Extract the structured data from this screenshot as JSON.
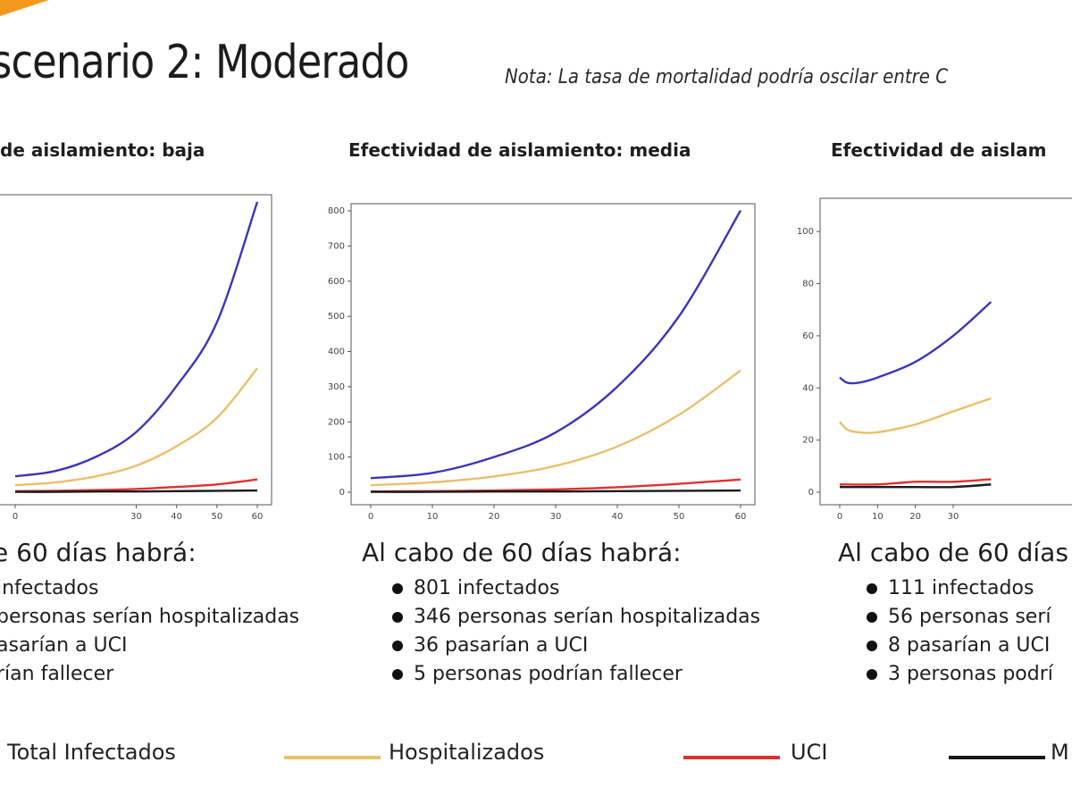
{
  "title": "scenario 2: Moderado",
  "note": "Nota: La tasa de mortalidad podría oscilar entre C",
  "colors": {
    "infectados": "#3a36b8",
    "hospitalizados": "#e8c06a",
    "uci": "#e03030",
    "muertes": "#1a1a1a",
    "accent": "#f39a1e"
  },
  "panels": [
    {
      "title": "de aislamiento: baja",
      "summary_head": "e 60 días habrá:",
      "bullets": [
        "infectados",
        "personas serían hospitalizadas",
        "asarían a UCI",
        "rían fallecer"
      ]
    },
    {
      "title": "Efectividad de aislamiento: media",
      "summary_head": "Al cabo de 60 días habrá:",
      "bullets": [
        "801 infectados",
        "346 personas serían hospitalizadas",
        "36 pasarían a UCI",
        "5 personas podrían fallecer"
      ]
    },
    {
      "title": "Efectividad de aislam",
      "summary_head": "Al cabo de 60 días",
      "bullets": [
        "111 infectados",
        "56 personas serí",
        "8 pasarían a UCI",
        "3 personas podrí"
      ]
    }
  ],
  "legend": [
    {
      "label": "Total Infectados",
      "color": "#3a36b8"
    },
    {
      "label": "Hospitalizados",
      "color": "#e8c06a"
    },
    {
      "label": "UCI",
      "color": "#e03030"
    },
    {
      "label": "M",
      "color": "#1a1a1a"
    }
  ],
  "chart_data": [
    {
      "type": "line",
      "xlim": [
        0,
        60
      ],
      "ylim": [
        0,
        820
      ],
      "x_ticks": [
        "0",
        "30",
        "40",
        "50",
        "60"
      ],
      "y_ticks": [],
      "series": [
        {
          "name": "Total Infectados",
          "x": [
            0,
            10,
            20,
            30,
            40,
            50,
            60
          ],
          "values": [
            45,
            60,
            100,
            170,
            300,
            480,
            820
          ]
        },
        {
          "name": "Hospitalizados",
          "x": [
            0,
            10,
            20,
            30,
            40,
            50,
            60
          ],
          "values": [
            20,
            28,
            45,
            75,
            130,
            210,
            350
          ]
        },
        {
          "name": "UCI",
          "x": [
            0,
            10,
            20,
            30,
            40,
            50,
            60
          ],
          "values": [
            3,
            4,
            6,
            9,
            15,
            22,
            36
          ]
        },
        {
          "name": "M",
          "x": [
            0,
            10,
            20,
            30,
            40,
            50,
            60
          ],
          "values": [
            1,
            1,
            2,
            2,
            3,
            4,
            5
          ]
        }
      ]
    },
    {
      "type": "line",
      "xlim": [
        0,
        60
      ],
      "ylim": [
        0,
        800
      ],
      "x_ticks": [
        "0",
        "10",
        "20",
        "30",
        "40",
        "50",
        "60"
      ],
      "y_ticks": [
        "0",
        "100",
        "200",
        "300",
        "400",
        "500",
        "600",
        "700",
        "800"
      ],
      "series": [
        {
          "name": "Total Infectados",
          "x": [
            0,
            10,
            20,
            30,
            40,
            50,
            60
          ],
          "values": [
            40,
            55,
            100,
            170,
            300,
            500,
            801
          ]
        },
        {
          "name": "Hospitalizados",
          "x": [
            0,
            10,
            20,
            30,
            40,
            50,
            60
          ],
          "values": [
            20,
            28,
            45,
            75,
            130,
            220,
            346
          ]
        },
        {
          "name": "UCI",
          "x": [
            0,
            10,
            20,
            30,
            40,
            50,
            60
          ],
          "values": [
            2,
            3,
            5,
            8,
            14,
            24,
            36
          ]
        },
        {
          "name": "M",
          "x": [
            0,
            10,
            20,
            30,
            40,
            50,
            60
          ],
          "values": [
            1,
            1,
            2,
            2,
            3,
            4,
            5
          ]
        }
      ]
    },
    {
      "type": "line",
      "xlim": [
        0,
        60
      ],
      "ylim": [
        0,
        110
      ],
      "x_ticks": [
        "0",
        "10",
        "20",
        "30"
      ],
      "y_ticks": [
        "0",
        "20",
        "40",
        "60",
        "80",
        "100"
      ],
      "series": [
        {
          "name": "Total Infectados",
          "x": [
            0,
            2,
            5,
            10,
            20,
            30,
            40
          ],
          "values": [
            44,
            42,
            42,
            44,
            50,
            60,
            73
          ]
        },
        {
          "name": "Hospitalizados",
          "x": [
            0,
            2,
            5,
            10,
            20,
            30,
            40
          ],
          "values": [
            27,
            24,
            23,
            23,
            26,
            31,
            36
          ]
        },
        {
          "name": "UCI",
          "x": [
            0,
            10,
            20,
            30,
            40
          ],
          "values": [
            3,
            3,
            4,
            4,
            5
          ]
        },
        {
          "name": "M",
          "x": [
            0,
            10,
            20,
            30,
            40
          ],
          "values": [
            2,
            2,
            2,
            2,
            3
          ]
        }
      ]
    }
  ]
}
